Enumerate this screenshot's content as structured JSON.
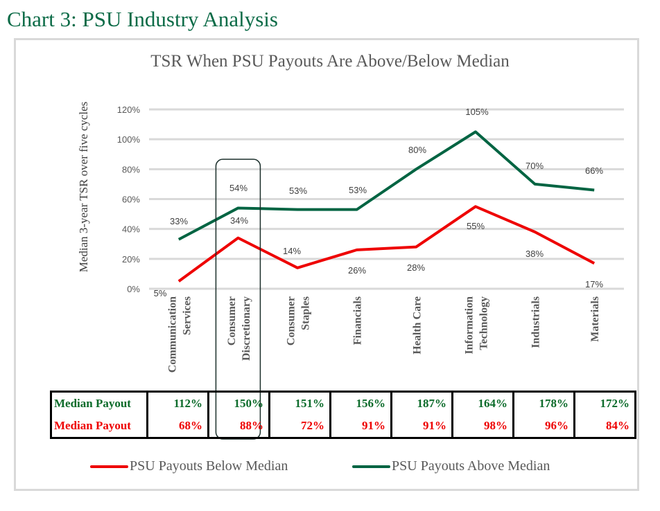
{
  "page_title": "Chart 3: PSU Industry Analysis",
  "colors": {
    "above": "#006442",
    "below": "#ee0000",
    "title_green": "#0b6b47",
    "grid": "#d9d9d9"
  },
  "chart_data": {
    "type": "line",
    "title": "TSR When PSU Payouts Are Above/Below Median",
    "xlabel": "",
    "ylabel": "Median 3-year TSR over five cycles",
    "ylim": [
      0,
      120
    ],
    "yticks": [
      "0%",
      "20%",
      "40%",
      "60%",
      "80%",
      "100%",
      "120%"
    ],
    "ytick_values": [
      0,
      20,
      40,
      60,
      80,
      100,
      120
    ],
    "grid": true,
    "legend_position": "bottom",
    "categories": [
      [
        "Communication",
        "Services"
      ],
      [
        "Consumer",
        "Discretionary"
      ],
      [
        "Consumer",
        "Staples"
      ],
      [
        "Financials"
      ],
      [
        "Health Care"
      ],
      [
        "Information",
        "Technology"
      ],
      [
        "Industrials"
      ],
      [
        "Materials"
      ]
    ],
    "series": [
      {
        "name": "PSU Payouts Below Median",
        "color": "#ee0000",
        "values": [
          5,
          34,
          14,
          26,
          28,
          55,
          38,
          17
        ],
        "labels": [
          "5%",
          "34%",
          "14%",
          "26%",
          "28%",
          "55%",
          "38%",
          "17%"
        ]
      },
      {
        "name": "PSU Payouts Above Median",
        "color": "#006442",
        "values": [
          33,
          54,
          53,
          53,
          80,
          105,
          70,
          66
        ],
        "labels": [
          "33%",
          "54%",
          "53%",
          "53%",
          "80%",
          "105%",
          "70%",
          "66%"
        ]
      }
    ],
    "highlight_category": "Consumer Discretionary"
  },
  "table": {
    "rows": [
      {
        "label": "Median Payout",
        "class": "g",
        "values": [
          "112%",
          "150%",
          "151%",
          "156%",
          "187%",
          "164%",
          "178%",
          "172%"
        ]
      },
      {
        "label": "Median Payout",
        "class": "r",
        "values": [
          "68%",
          "88%",
          "72%",
          "91%",
          "91%",
          "98%",
          "96%",
          "84%"
        ]
      }
    ]
  },
  "legend": [
    {
      "label": "PSU Payouts Below Median",
      "color": "#ee0000"
    },
    {
      "label": "PSU Payouts Above Median",
      "color": "#006442"
    }
  ]
}
